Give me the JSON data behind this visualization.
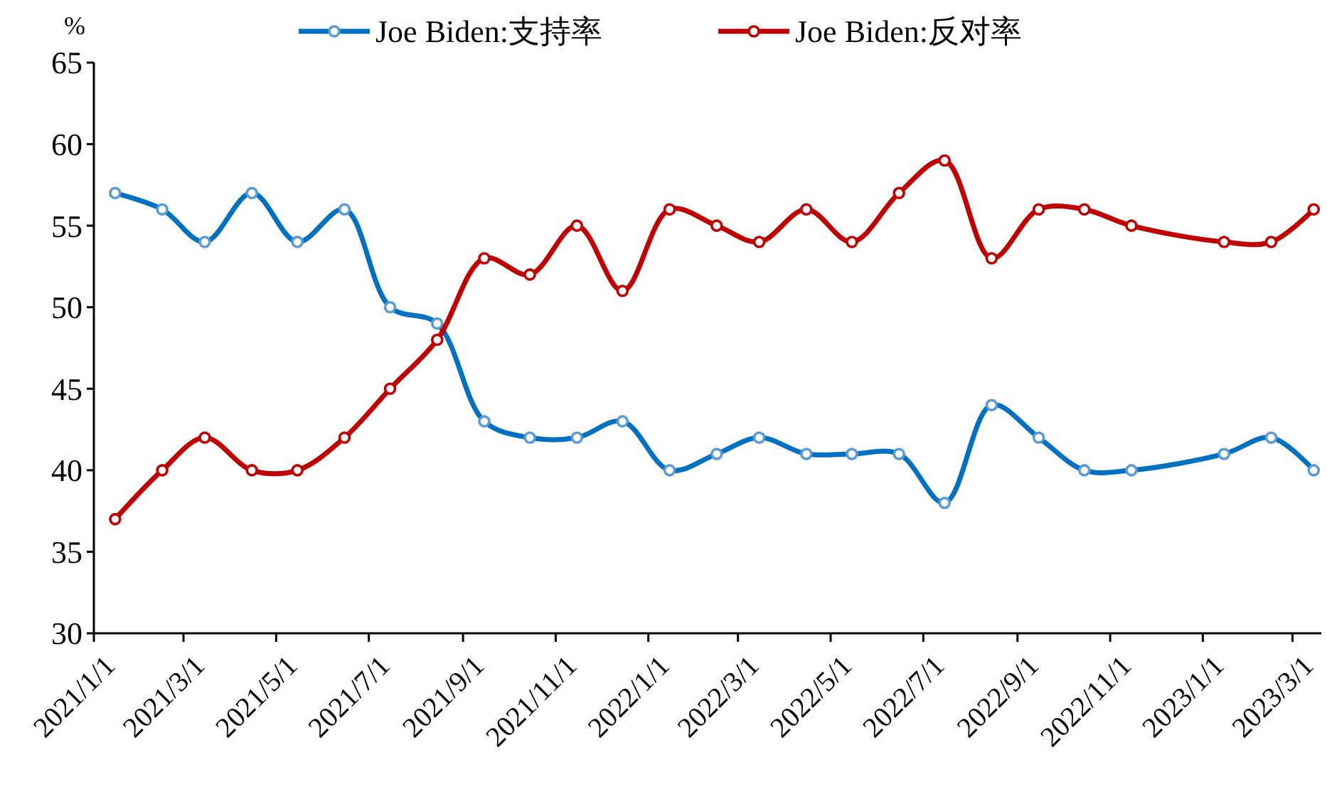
{
  "chart_data": {
    "type": "line",
    "ylabel": "%",
    "x": [
      "2021-01-15",
      "2021-02-15",
      "2021-03-15",
      "2021-04-15",
      "2021-05-15",
      "2021-06-15",
      "2021-07-15",
      "2021-08-15",
      "2021-09-15",
      "2021-10-15",
      "2021-11-15",
      "2021-12-15",
      "2022-01-15",
      "2022-02-15",
      "2022-03-15",
      "2022-04-15",
      "2022-05-15",
      "2022-06-15",
      "2022-07-15",
      "2022-08-15",
      "2022-09-15",
      "2022-10-15",
      "2022-11-15",
      "2023-01-15",
      "2023-02-15",
      "2023-03-15"
    ],
    "series": [
      {
        "name": "Joe Biden:支持率",
        "color": "#0070c0",
        "values": [
          57,
          56,
          54,
          57,
          54,
          56,
          50,
          49,
          43,
          42,
          42,
          43,
          40,
          41,
          42,
          41,
          41,
          41,
          38,
          44,
          42,
          40,
          40,
          41,
          42,
          40
        ]
      },
      {
        "name": "Joe Biden:反对率",
        "color": "#c00000",
        "values": [
          37,
          40,
          42,
          40,
          40,
          42,
          45,
          48,
          53,
          52,
          55,
          51,
          56,
          55,
          54,
          56,
          54,
          57,
          59,
          53,
          56,
          56,
          55,
          54,
          54,
          56
        ]
      }
    ],
    "xlim": [
      "2021-01-01",
      "2023-03-20"
    ],
    "xticks": [
      {
        "value": "2021-01-01",
        "label": "2021/1/1"
      },
      {
        "value": "2021-03-01",
        "label": "2021/3/1"
      },
      {
        "value": "2021-05-01",
        "label": "2021/5/1"
      },
      {
        "value": "2021-07-01",
        "label": "2021/7/1"
      },
      {
        "value": "2021-09-01",
        "label": "2021/9/1"
      },
      {
        "value": "2021-11-01",
        "label": "2021/11/1"
      },
      {
        "value": "2022-01-01",
        "label": "2022/1/1"
      },
      {
        "value": "2022-03-01",
        "label": "2022/3/1"
      },
      {
        "value": "2022-05-01",
        "label": "2022/5/1"
      },
      {
        "value": "2022-07-01",
        "label": "2022/7/1"
      },
      {
        "value": "2022-09-01",
        "label": "2022/9/1"
      },
      {
        "value": "2022-11-01",
        "label": "2022/11/1"
      },
      {
        "value": "2023-01-01",
        "label": "2023/1/1"
      },
      {
        "value": "2023-03-01",
        "label": "2023/3/1"
      }
    ],
    "ylim": [
      30,
      65
    ],
    "yticks": [
      30,
      35,
      40,
      45,
      50,
      55,
      60,
      65
    ],
    "grid": false,
    "legend": "top",
    "marker": "circle",
    "line_style": "solid"
  }
}
